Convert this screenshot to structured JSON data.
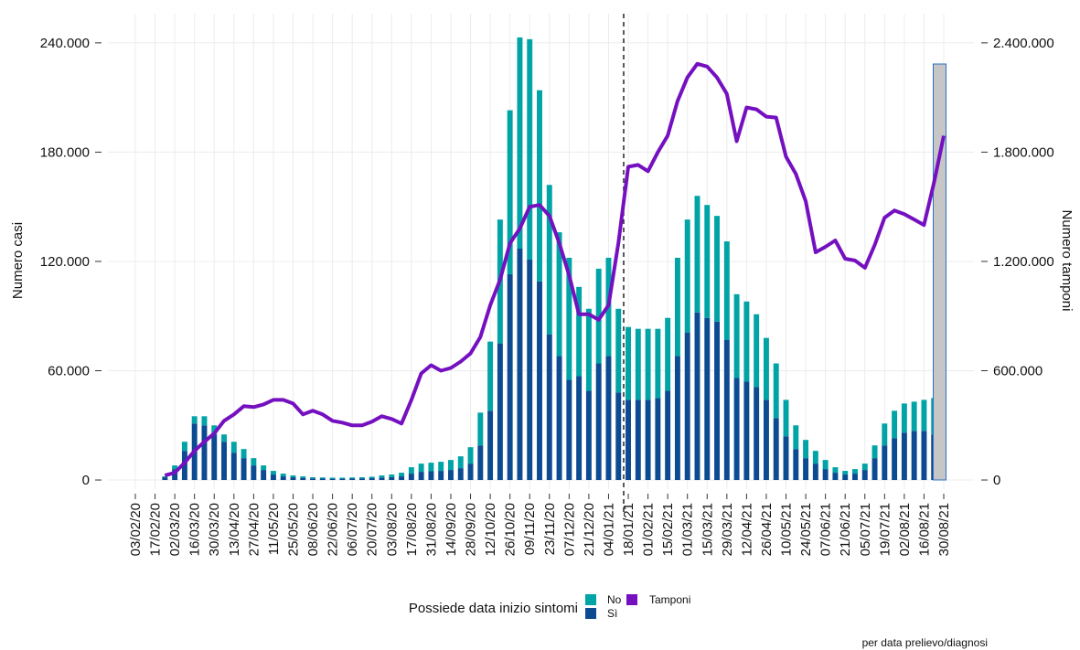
{
  "chart_data": {
    "type": "bar",
    "y_label": "Numero casi",
    "y2_label": "Numero tamponi",
    "legend_title": "Possiede data inizio sintomi",
    "caption": "per data prelievo/diagnosi",
    "grid": true,
    "categories": [
      "03/02/20",
      null,
      "17/02/20",
      null,
      "02/03/20",
      null,
      "16/03/20",
      null,
      "30/03/20",
      null,
      "13/04/20",
      null,
      "27/04/20",
      null,
      "11/05/20",
      null,
      "25/05/20",
      null,
      "08/06/20",
      null,
      "22/06/20",
      null,
      "06/07/20",
      null,
      "20/07/20",
      null,
      "03/08/20",
      null,
      "17/08/20",
      null,
      "31/08/20",
      null,
      "14/09/20",
      null,
      "28/09/20",
      null,
      "12/10/20",
      null,
      "26/10/20",
      null,
      "09/11/20",
      null,
      "23/11/20",
      null,
      "07/12/20",
      null,
      "21/12/20",
      null,
      "04/01/21",
      null,
      "18/01/21",
      null,
      "01/02/21",
      null,
      "15/02/21",
      null,
      "01/03/21",
      null,
      "15/03/21",
      null,
      "29/03/21",
      null,
      "12/04/21",
      null,
      "26/04/21",
      null,
      "10/05/21",
      null,
      "24/05/21",
      null,
      "07/06/21",
      null,
      "21/06/21",
      null,
      "05/07/21",
      null,
      "19/07/21",
      null,
      "02/08/21",
      null,
      "16/08/21",
      null,
      "30/08/21"
    ],
    "ylim": [
      -5000,
      256000
    ],
    "yticks": [
      0,
      {
        "value": 60000,
        "label": "60.000"
      },
      {
        "value": 120000,
        "label": "120.000"
      },
      {
        "value": 180000,
        "label": "180.000"
      },
      {
        "value": 240000,
        "label": "240.000"
      }
    ],
    "y2lim": [
      -50000,
      2560000
    ],
    "y2ticks": [
      0,
      {
        "value": 600000,
        "label": "600.000"
      },
      {
        "value": 1200000,
        "label": "1.200.000"
      },
      {
        "value": 1800000,
        "label": "1.800.000"
      },
      {
        "value": 2400000,
        "label": "2.400.000"
      }
    ],
    "series": [
      {
        "name": "No",
        "type": "bar",
        "color": "#00a4a6",
        "values": [
          null,
          null,
          null,
          500,
          2000,
          5000,
          4000,
          5000,
          5000,
          4000,
          6000,
          5000,
          4000,
          2500,
          2000,
          1500,
          1000,
          800,
          600,
          600,
          600,
          600,
          600,
          700,
          800,
          1100,
          1400,
          2000,
          3500,
          4500,
          4700,
          5000,
          5500,
          6500,
          9000,
          18000,
          38000,
          68000,
          90000,
          116000,
          121000,
          105000,
          82000,
          68000,
          67000,
          49000,
          45000,
          52000,
          54000,
          46000,
          40000,
          39000,
          39000,
          38000,
          40000,
          54000,
          62000,
          64000,
          62000,
          58000,
          54000,
          46000,
          44000,
          40000,
          34000,
          30000,
          20000,
          13000,
          10000,
          7000,
          5000,
          3000,
          2000,
          2500,
          3500,
          7000,
          12000,
          15000,
          16000,
          16000,
          17000,
          20000,
          17000
        ]
      },
      {
        "name": "Sì",
        "type": "bar",
        "color": "#0c4a92",
        "values": [
          null,
          null,
          null,
          1500,
          6000,
          16000,
          31000,
          30000,
          25000,
          21000,
          15000,
          12000,
          8000,
          5500,
          3000,
          2000,
          1500,
          1200,
          900,
          800,
          700,
          700,
          800,
          800,
          1000,
          1400,
          1600,
          2000,
          3500,
          4500,
          4800,
          5000,
          5500,
          6500,
          9000,
          19000,
          38000,
          75000,
          113000,
          127000,
          121000,
          109000,
          80000,
          68000,
          55000,
          57000,
          49000,
          64000,
          68000,
          48000,
          44000,
          44000,
          44000,
          45000,
          49000,
          68000,
          81000,
          92000,
          89000,
          87000,
          77000,
          56000,
          54000,
          51000,
          44000,
          34000,
          24000,
          17000,
          12000,
          9000,
          6000,
          4000,
          3000,
          3500,
          5500,
          12000,
          19000,
          23000,
          26000,
          27000,
          27000,
          25000,
          20000
        ]
      },
      {
        "name": "Tamponi",
        "type": "line",
        "axis": "y2",
        "color": "#7510c0",
        "values": [
          null,
          null,
          null,
          25000,
          40000,
          95000,
          160000,
          210000,
          255000,
          325000,
          360000,
          405000,
          400000,
          415000,
          440000,
          440000,
          420000,
          360000,
          380000,
          360000,
          325000,
          315000,
          300000,
          300000,
          320000,
          350000,
          335000,
          310000,
          440000,
          585000,
          630000,
          600000,
          615000,
          650000,
          695000,
          785000,
          960000,
          1100000,
          1300000,
          1380000,
          1500000,
          1510000,
          1450000,
          1300000,
          1125000,
          910000,
          910000,
          880000,
          960000,
          1300000,
          1720000,
          1730000,
          1695000,
          1800000,
          1890000,
          2080000,
          2210000,
          2285000,
          2270000,
          2210000,
          2120000,
          1860000,
          2045000,
          2035000,
          1995000,
          1990000,
          1775000,
          1680000,
          1530000,
          1250000,
          1280000,
          1315000,
          1215000,
          1205000,
          1165000,
          1290000,
          1440000,
          1480000,
          1460000,
          1430000,
          1400000,
          1630000,
          1890000
        ]
      }
    ]
  }
}
